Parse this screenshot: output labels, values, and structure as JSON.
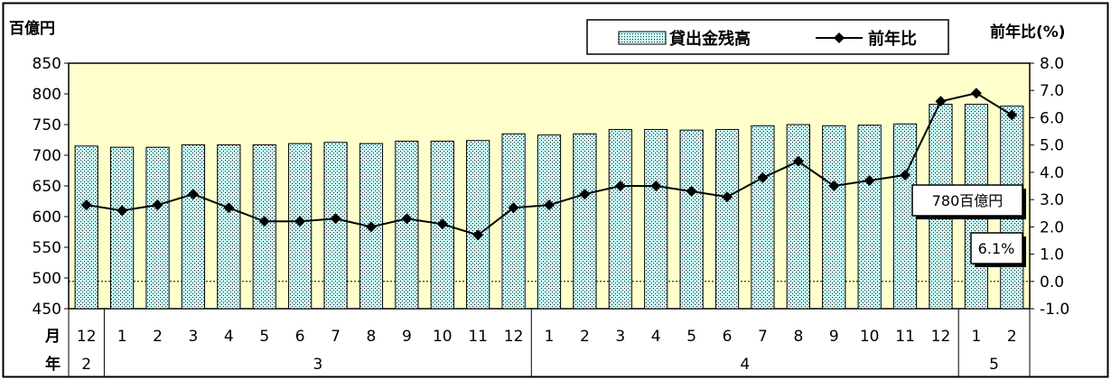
{
  "chart_data": {
    "type": "bar",
    "left_axis_title": "百億円",
    "right_axis_title": "前年比(%)",
    "left_axis": {
      "min": 450,
      "max": 850,
      "step": 50,
      "ticks": [
        "850",
        "800",
        "750",
        "700",
        "650",
        "600",
        "550",
        "500",
        "450"
      ]
    },
    "right_axis": {
      "min": -1.0,
      "max": 8.0,
      "step": 1.0,
      "ticks": [
        "8.0",
        "7.0",
        "6.0",
        "5.0",
        "4.0",
        "3.0",
        "2.0",
        "1.0",
        "0.0",
        "-1.0"
      ]
    },
    "month_row_label": "月",
    "year_row_label": "年",
    "months": [
      "12",
      "1",
      "2",
      "3",
      "4",
      "5",
      "6",
      "7",
      "8",
      "9",
      "10",
      "11",
      "12",
      "1",
      "2",
      "3",
      "4",
      "5",
      "6",
      "7",
      "8",
      "9",
      "10",
      "11",
      "12",
      "1",
      "2"
    ],
    "year_groups": [
      {
        "label": "2",
        "start": 0,
        "end": 0
      },
      {
        "label": "3",
        "start": 1,
        "end": 12
      },
      {
        "label": "4",
        "start": 13,
        "end": 24
      },
      {
        "label": "5",
        "start": 25,
        "end": 26
      }
    ],
    "series": [
      {
        "name": "貸出金残高",
        "type": "bar",
        "axis": "left",
        "values": [
          715,
          713,
          713,
          717,
          717,
          717,
          719,
          721,
          719,
          723,
          723,
          724,
          735,
          733,
          735,
          742,
          742,
          741,
          742,
          748,
          750,
          748,
          749,
          751,
          783,
          783,
          780
        ]
      },
      {
        "name": "前年比",
        "type": "line",
        "axis": "right",
        "values": [
          2.8,
          2.6,
          2.8,
          3.2,
          2.7,
          2.2,
          2.2,
          2.3,
          2.0,
          2.3,
          2.1,
          1.7,
          2.7,
          2.8,
          3.2,
          3.5,
          3.5,
          3.3,
          3.1,
          3.8,
          4.4,
          3.5,
          3.7,
          3.9,
          6.6,
          6.9,
          6.1
        ]
      }
    ],
    "annotations": [
      {
        "text": "780百億円"
      },
      {
        "text": "6.1%"
      }
    ],
    "legend_position": "top-right",
    "grid": false,
    "colors": {
      "plot_background": "#ffffcc",
      "bar_fill": "#ccffff",
      "bar_dots": "#1a1a1a",
      "line": "#000000"
    }
  }
}
